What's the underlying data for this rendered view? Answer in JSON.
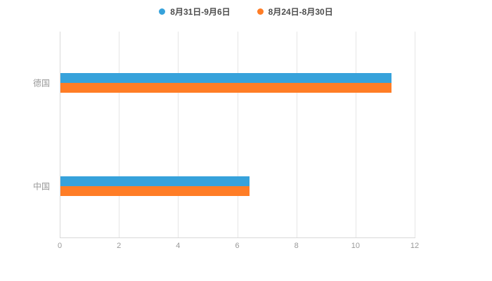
{
  "legend": {
    "items": [
      {
        "label": "8月31日-9月6日",
        "color": "#36a2db"
      },
      {
        "label": "8月24日-8月30日",
        "color": "#ff7d26"
      }
    ]
  },
  "chart_data": {
    "type": "bar",
    "orientation": "horizontal",
    "title": "",
    "xlabel": "",
    "ylabel": "",
    "categories": [
      "德国",
      "中国"
    ],
    "series": [
      {
        "name": "8月31日-9月6日",
        "color": "#36a2db",
        "values": [
          11.2,
          6.4
        ]
      },
      {
        "name": "8月24日-8月30日",
        "color": "#ff7d26",
        "values": [
          11.2,
          6.4
        ]
      }
    ],
    "xlim": [
      0,
      12
    ],
    "x_ticks": [
      0,
      2,
      4,
      6,
      8,
      10,
      12
    ],
    "grid": true,
    "grid_color": "#e6e6e6",
    "axis_color": "#d9d9d9",
    "label_color": "#999999",
    "legend_position": "top",
    "background": "#ffffff"
  }
}
